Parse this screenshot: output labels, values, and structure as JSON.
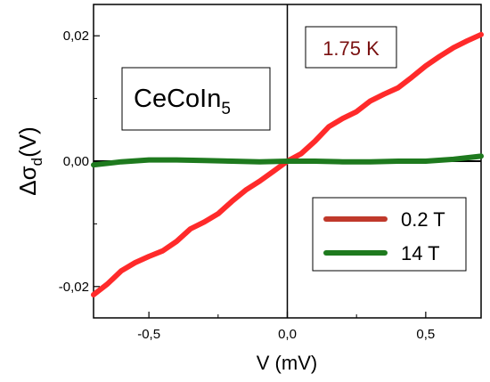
{
  "chart_data": {
    "type": "line",
    "title": "",
    "xlabel": "V (mV)",
    "ylabel_main": "Δσ",
    "ylabel_sub": "d",
    "ylabel_tail": "(V)",
    "xlim": [
      -0.7,
      0.7
    ],
    "ylim": [
      -0.025,
      0.025
    ],
    "x_ticks": [
      {
        "value": -0.5,
        "label": "-0,5"
      },
      {
        "value": 0.0,
        "label": "0,0"
      },
      {
        "value": 0.5,
        "label": "0,5"
      }
    ],
    "y_ticks": [
      {
        "value": -0.02,
        "label": "-0,02"
      },
      {
        "value": 0.0,
        "label": "0,00"
      },
      {
        "value": 0.02,
        "label": "0,02"
      }
    ],
    "grid": false,
    "legend_position": "bottom-right",
    "annotations": {
      "material_main": "CeCoIn",
      "material_sub": "5",
      "temperature": "1.75 K"
    },
    "series": [
      {
        "name": "0.2 T",
        "color": "#ff2a2a",
        "legend_color": "#c0392b",
        "x": [
          -0.7,
          -0.65,
          -0.6,
          -0.55,
          -0.5,
          -0.45,
          -0.4,
          -0.35,
          -0.3,
          -0.25,
          -0.2,
          -0.15,
          -0.1,
          -0.05,
          0.0,
          0.05,
          0.1,
          0.15,
          0.2,
          0.25,
          0.3,
          0.35,
          0.4,
          0.45,
          0.5,
          0.55,
          0.6,
          0.65,
          0.7
        ],
        "values": [
          -0.0213,
          -0.0196,
          -0.0175,
          -0.0162,
          -0.0152,
          -0.0143,
          -0.0128,
          -0.0108,
          -0.0097,
          -0.0084,
          -0.0064,
          -0.0046,
          -0.0032,
          -0.0016,
          0.0,
          0.0012,
          0.0032,
          0.0055,
          0.0068,
          0.0079,
          0.0096,
          0.0107,
          0.0117,
          0.0134,
          0.0152,
          0.0167,
          0.0181,
          0.0192,
          0.0202
        ]
      },
      {
        "name": "14 T",
        "color": "#1e7a1e",
        "legend_color": "#1e7a1e",
        "x": [
          -0.7,
          -0.6,
          -0.5,
          -0.4,
          -0.3,
          -0.2,
          -0.1,
          0.0,
          0.1,
          0.2,
          0.3,
          0.4,
          0.5,
          0.6,
          0.7
        ],
        "values": [
          -0.0006,
          -0.0001,
          0.0002,
          0.0002,
          0.0001,
          0.0,
          -0.0001,
          0.0,
          0.0,
          -0.0001,
          -0.0001,
          0.0,
          0.0,
          0.0003,
          0.0008
        ]
      }
    ]
  }
}
